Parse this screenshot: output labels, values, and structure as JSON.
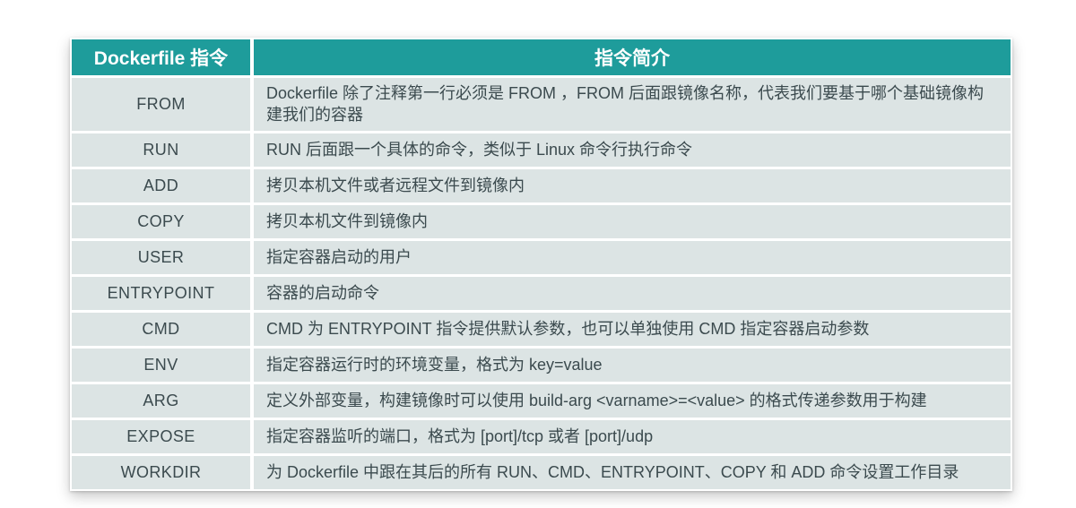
{
  "table": {
    "headers": {
      "directive": "Dockerfile 指令",
      "description": "指令简介"
    },
    "rows": [
      {
        "directive": "FROM",
        "description": "Dockerfile 除了注释第一行必须是 FROM ，FROM 后面跟镜像名称，代表我们要基于哪个基础镜像构建我们的容器"
      },
      {
        "directive": "RUN",
        "description": "RUN 后面跟一个具体的命令，类似于 Linux 命令行执行命令"
      },
      {
        "directive": "ADD",
        "description": "拷贝本机文件或者远程文件到镜像内"
      },
      {
        "directive": "COPY",
        "description": "拷贝本机文件到镜像内"
      },
      {
        "directive": "USER",
        "description": "指定容器启动的用户"
      },
      {
        "directive": "ENTRYPOINT",
        "description": "容器的启动命令"
      },
      {
        "directive": "CMD",
        "description": "CMD 为 ENTRYPOINT 指令提供默认参数，也可以单独使用 CMD 指定容器启动参数"
      },
      {
        "directive": "ENV",
        "description": "指定容器运行时的环境变量，格式为 key=value"
      },
      {
        "directive": "ARG",
        "description": "定义外部变量，构建镜像时可以使用 build-arg <varname>=<value> 的格式传递参数用于构建"
      },
      {
        "directive": "EXPOSE",
        "description": "指定容器监听的端口，格式为 [port]/tcp 或者 [port]/udp"
      },
      {
        "directive": "WORKDIR",
        "description": "为 Dockerfile 中跟在其后的所有 RUN、CMD、ENTRYPOINT、COPY 和 ADD 命令设置工作目录"
      }
    ],
    "colors": {
      "header_bg": "#1e9c9b",
      "header_text": "#ffffff",
      "row_bg": "#dce4e4",
      "row_text": "#3b4a4e",
      "gap": "#ffffff"
    }
  }
}
